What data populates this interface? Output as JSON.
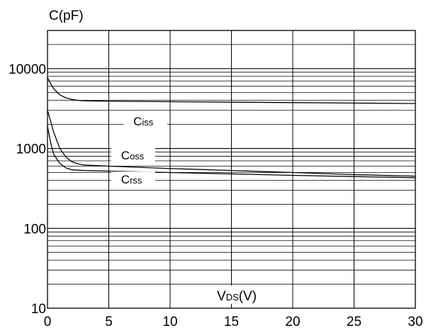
{
  "chart_data": {
    "type": "line",
    "title": "",
    "ylabel": "C(pF)",
    "xlabel": {
      "main": "V",
      "sub": "DS",
      "unit": "(V)"
    },
    "x_scale": "linear",
    "y_scale": "log",
    "xlim": [
      0,
      30
    ],
    "ylim": [
      10,
      30000
    ],
    "x_ticks": [
      0,
      5,
      10,
      15,
      20,
      25,
      30
    ],
    "y_ticks": [
      10,
      100,
      1000,
      10000
    ],
    "y_tick_labels": [
      "10",
      "100",
      "1000",
      "10000"
    ],
    "grid": true,
    "legend": "none",
    "series": [
      {
        "name": "Ciss",
        "label_main": "C",
        "label_sub": "iss",
        "x": [
          0,
          0.25,
          0.5,
          1,
          1.5,
          2,
          2.5,
          3,
          5,
          10,
          15,
          20,
          25,
          30
        ],
        "y": [
          7700,
          6500,
          5600,
          4700,
          4300,
          4100,
          4000,
          3950,
          3900,
          3850,
          3800,
          3750,
          3700,
          3650
        ]
      },
      {
        "name": "Coss",
        "label_main": "C",
        "label_sub": "oss",
        "x": [
          0,
          0.25,
          0.5,
          1,
          1.5,
          2,
          2.5,
          3,
          5,
          10,
          15,
          20,
          25,
          30
        ],
        "y": [
          3000,
          2200,
          1600,
          1000,
          780,
          680,
          640,
          620,
          600,
          560,
          530,
          500,
          470,
          450
        ]
      },
      {
        "name": "Crss",
        "label_main": "C",
        "label_sub": "rss",
        "x": [
          0,
          0.25,
          0.5,
          1,
          1.5,
          2,
          3,
          5,
          10,
          15,
          20,
          25,
          30
        ],
        "y": [
          1900,
          1200,
          850,
          650,
          570,
          540,
          530,
          520,
          500,
          480,
          460,
          445,
          430
        ]
      }
    ]
  }
}
